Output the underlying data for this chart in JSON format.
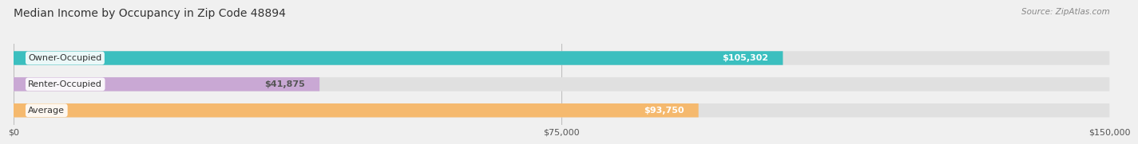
{
  "title": "Median Income by Occupancy in Zip Code 48894",
  "source": "Source: ZipAtlas.com",
  "categories": [
    "Owner-Occupied",
    "Renter-Occupied",
    "Average"
  ],
  "values": [
    105302,
    41875,
    93750
  ],
  "value_labels": [
    "$105,302",
    "$41,875",
    "$93,750"
  ],
  "bar_colors": [
    "#3bbfbf",
    "#c9a8d4",
    "#f5b96e"
  ],
  "label_colors": [
    "#ffffff",
    "#555555",
    "#ffffff"
  ],
  "x_max": 150000,
  "x_ticks": [
    0,
    75000,
    150000
  ],
  "x_tick_labels": [
    "$0",
    "$75,000",
    "$150,000"
  ],
  "background_color": "#f0f0f0",
  "bar_bg_color": "#e0e0e0",
  "title_fontsize": 10,
  "bar_height": 0.52,
  "label_fontsize": 8
}
